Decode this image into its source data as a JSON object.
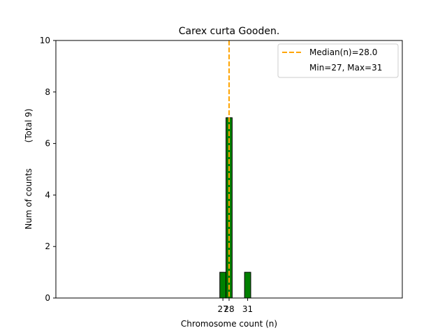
{
  "chart_data": {
    "type": "bar",
    "title": "Carex curta Gooden.",
    "xlabel": "Chromosome count (n)",
    "ylabel": "Num of counts",
    "ylabel_total": "(Total 9)",
    "bins": [
      {
        "x": 27,
        "count": 1
      },
      {
        "x": 28,
        "count": 7
      },
      {
        "x": 29,
        "count": 0
      },
      {
        "x": 30,
        "count": 0
      },
      {
        "x": 31,
        "count": 1
      }
    ],
    "xlim": [
      0,
      56
    ],
    "ylim": [
      0,
      10
    ],
    "x_ticks": [
      27,
      28,
      31
    ],
    "y_ticks": [
      0,
      2,
      4,
      6,
      8,
      10
    ],
    "median": 28.0,
    "legend": {
      "position": "top-right",
      "median_label": "Median(n)=28.0",
      "range_label": "Min=27, Max=31"
    },
    "colors": {
      "bar_fill": "#008000",
      "bar_edge": "#000000",
      "median_line": "#ffa500"
    },
    "grid": false
  }
}
